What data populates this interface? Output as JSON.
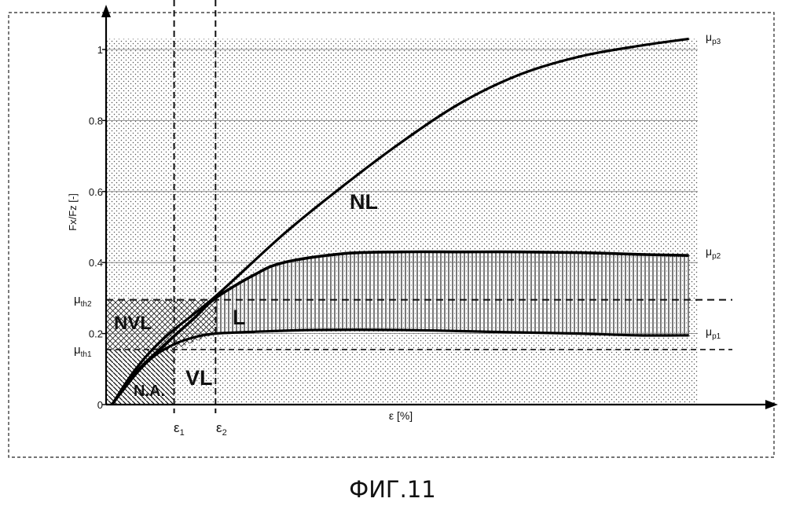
{
  "figure": {
    "caption": "ФИГ.11"
  },
  "chart_data": {
    "type": "line",
    "xlabel": "ε [%]",
    "ylabel": "Fx/Fz [-]",
    "yticks": [
      {
        "value": 0,
        "label": "0"
      },
      {
        "value": 0.2,
        "label": "0.2"
      },
      {
        "value": 0.4,
        "label": "0.4"
      },
      {
        "value": 0.6,
        "label": "0.6"
      },
      {
        "value": 0.8,
        "label": "0.8"
      },
      {
        "value": 1.0,
        "label": "1"
      }
    ],
    "ylim": [
      0,
      1.1
    ],
    "xlim": [
      0,
      1
    ],
    "thresholds": {
      "mu_th1": {
        "value": 0.155,
        "label": "μth1"
      },
      "mu_th2": {
        "value": 0.295,
        "label": "μth2"
      }
    },
    "x_markers": {
      "eps1": {
        "value": 0.115,
        "label": "ε1"
      },
      "eps2": {
        "value": 0.185,
        "label": "ε2"
      }
    },
    "series": [
      {
        "name": "μp3",
        "x": [
          0.01,
          0.05,
          0.1,
          0.185,
          0.3,
          0.4,
          0.5,
          0.6,
          0.7,
          0.8,
          0.9,
          0.985
        ],
        "y": [
          0.0,
          0.1,
          0.19,
          0.305,
          0.48,
          0.615,
          0.74,
          0.85,
          0.93,
          0.98,
          1.01,
          1.03
        ]
      },
      {
        "name": "μp2",
        "x": [
          0.01,
          0.05,
          0.1,
          0.15,
          0.185,
          0.25,
          0.3,
          0.4,
          0.5,
          0.6,
          0.7,
          0.8,
          0.9,
          0.985
        ],
        "y": [
          0.0,
          0.09,
          0.17,
          0.245,
          0.3,
          0.365,
          0.4,
          0.425,
          0.43,
          0.43,
          0.43,
          0.428,
          0.423,
          0.42
        ]
      },
      {
        "name": "μp1",
        "x": [
          0.01,
          0.05,
          0.08,
          0.115,
          0.15,
          0.185,
          0.25,
          0.35,
          0.5,
          0.65,
          0.8,
          0.9,
          0.985
        ],
        "y": [
          0.0,
          0.085,
          0.135,
          0.17,
          0.19,
          0.2,
          0.205,
          0.21,
          0.21,
          0.205,
          0.2,
          0.195,
          0.195
        ]
      }
    ],
    "regions": [
      {
        "label": "NL"
      },
      {
        "label": "L"
      },
      {
        "label": "NVL"
      },
      {
        "label": "VL"
      },
      {
        "label": "N.A."
      }
    ],
    "grid": true
  }
}
